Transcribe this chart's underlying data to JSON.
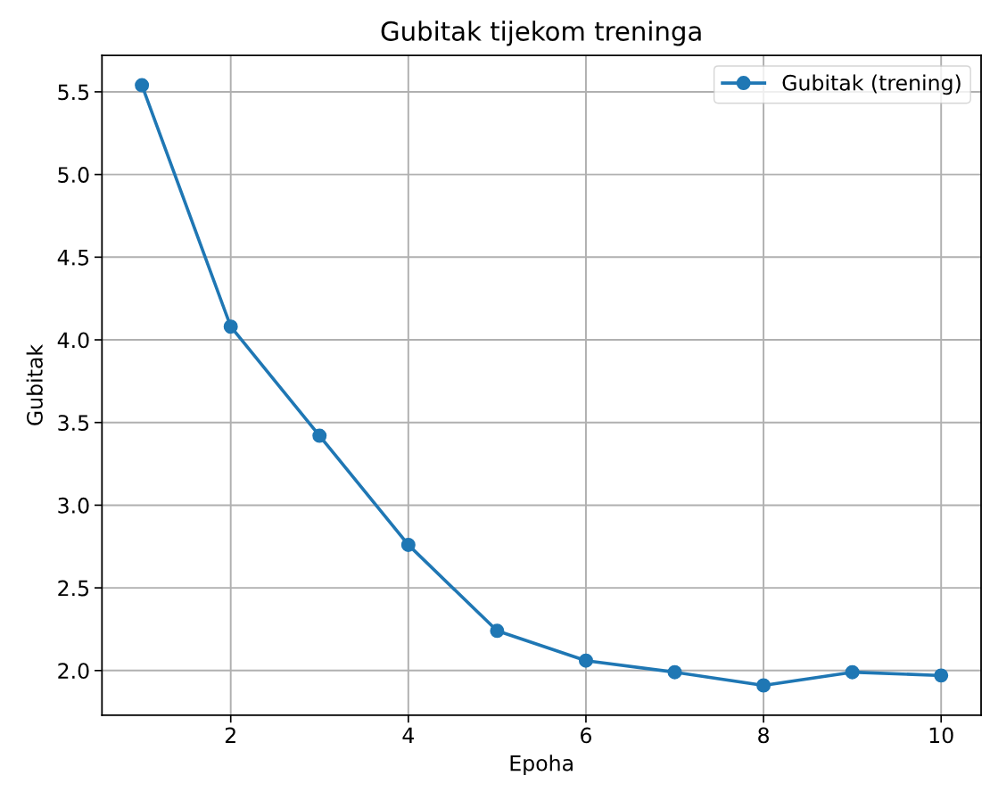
{
  "chart_data": {
    "type": "line",
    "title": "Gubitak tijekom treninga",
    "xlabel": "Epoha",
    "ylabel": "Gubitak",
    "x": [
      1,
      2,
      3,
      4,
      5,
      6,
      7,
      8,
      9,
      10
    ],
    "series": [
      {
        "name": "Gubitak (trening)",
        "color": "#1f77b4",
        "values": [
          5.54,
          4.08,
          3.42,
          2.76,
          2.24,
          2.06,
          1.99,
          1.91,
          1.99,
          1.97
        ]
      }
    ],
    "xlim": [
      0.55,
      10.45
    ],
    "xticks": [
      2,
      4,
      6,
      8,
      10
    ],
    "ylim": [
      1.73,
      5.72
    ],
    "yticks": [
      {
        "value": 2.0,
        "label": "2.0"
      },
      {
        "value": 2.5,
        "label": "2.5"
      },
      {
        "value": 3.0,
        "label": "3.0"
      },
      {
        "value": 3.5,
        "label": "3.5"
      },
      {
        "value": 4.0,
        "label": "4.0"
      },
      {
        "value": 4.5,
        "label": "4.5"
      },
      {
        "value": 5.0,
        "label": "5.0"
      },
      {
        "value": 5.5,
        "label": "5.5"
      }
    ],
    "grid": true,
    "legend": "top right",
    "marker": "circle",
    "line_style": "solid"
  }
}
